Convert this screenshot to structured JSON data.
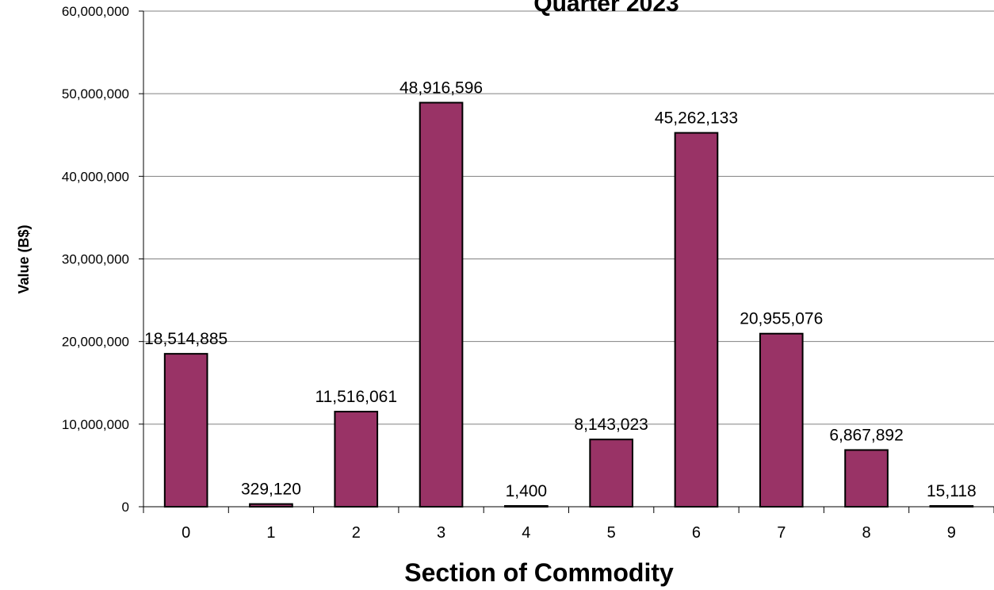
{
  "chart_data": {
    "type": "bar",
    "title": "Quarter 2023",
    "xlabel": "Section of Commodity",
    "ylabel": "Value (B$)",
    "categories": [
      "0",
      "1",
      "2",
      "3",
      "4",
      "5",
      "6",
      "7",
      "8",
      "9"
    ],
    "values": [
      18514885,
      329120,
      11516061,
      48916596,
      1400,
      8143023,
      45262133,
      20955076,
      6867892,
      15118
    ],
    "value_labels": [
      "18,514,885",
      "329,120",
      "11,516,061",
      "48,916,596",
      "1,400",
      "8,143,023",
      "45,262,133",
      "20,955,076",
      "6,867,892",
      "15,118"
    ],
    "yticks": [
      0,
      10000000,
      20000000,
      30000000,
      40000000,
      50000000,
      60000000
    ],
    "ytick_labels": [
      "0",
      "10,000,000",
      "20,000,000",
      "30,000,000",
      "40,000,000",
      "50,000,000",
      "60,000,000"
    ],
    "ylim": [
      0,
      60000000
    ],
    "grid": true,
    "bar_color": "#993366"
  }
}
